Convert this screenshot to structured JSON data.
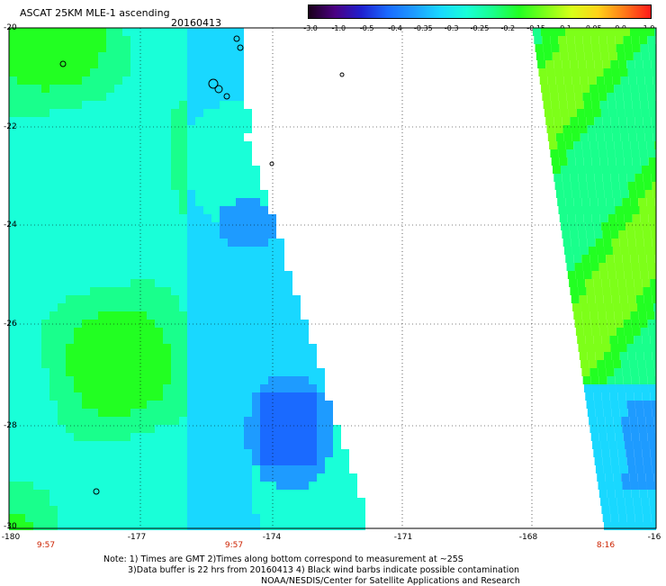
{
  "header": {
    "title": "ASCAT 25KM MLE-1 ascending",
    "date": "20160413"
  },
  "colorbar": {
    "colors": [
      "#1a001a",
      "#4b0082",
      "#1f1fcf",
      "#1a6aff",
      "#1e9bff",
      "#19d8ff",
      "#19ffd8",
      "#19ff8c",
      "#22ff22",
      "#7dff19",
      "#d8ff19",
      "#ffd219",
      "#ff7a19",
      "#ff1919"
    ],
    "ticks": [
      "-3.0",
      "-1.0",
      "-0.5",
      "-0.4",
      "-0.35",
      "-0.3",
      "-0.25",
      "-0.2",
      "-0.15",
      "-0.1",
      "-0.05",
      "0.0",
      "1.0"
    ]
  },
  "axes": {
    "lat_labels": [
      "-20",
      "-22",
      "-24",
      "-26",
      "-28",
      "-30"
    ],
    "lon_labels": [
      "-180",
      "-177",
      "-174",
      "-171",
      "-168",
      "-16"
    ],
    "time_labels": [
      "9:57",
      "9:57",
      "8:16"
    ]
  },
  "notes": {
    "line1": "Note: 1) Times are GMT 2)Times along bottom correspond to measurement at ~25S",
    "line2": "3)Data buffer is 22 hrs from 20160413 4) Black wind barbs indicate possible contamination",
    "line3": "NOAA/NESDIS/Center for Satellite Applications and Research"
  }
}
